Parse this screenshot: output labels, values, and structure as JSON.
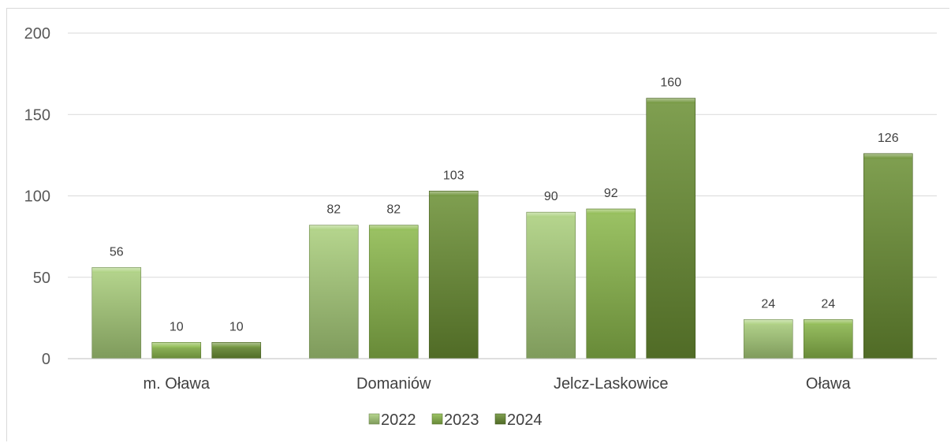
{
  "chart_data": {
    "type": "bar",
    "categories": [
      "m. Oława",
      "Domaniów",
      "Jelcz-Laskowice",
      "Oława"
    ],
    "series": [
      {
        "name": "2022",
        "values": [
          56,
          82,
          90,
          24
        ],
        "color": "#a9cf7a"
      },
      {
        "name": "2023",
        "values": [
          10,
          82,
          92,
          24
        ],
        "color": "#8ab84a"
      },
      {
        "name": "2024",
        "values": [
          10,
          103,
          160,
          126
        ],
        "color": "#6a8f32"
      }
    ],
    "yticks": [
      "0",
      "50",
      "100",
      "150",
      "200"
    ],
    "ylim": [
      0,
      200
    ],
    "grid": true,
    "legend": "bottom"
  }
}
